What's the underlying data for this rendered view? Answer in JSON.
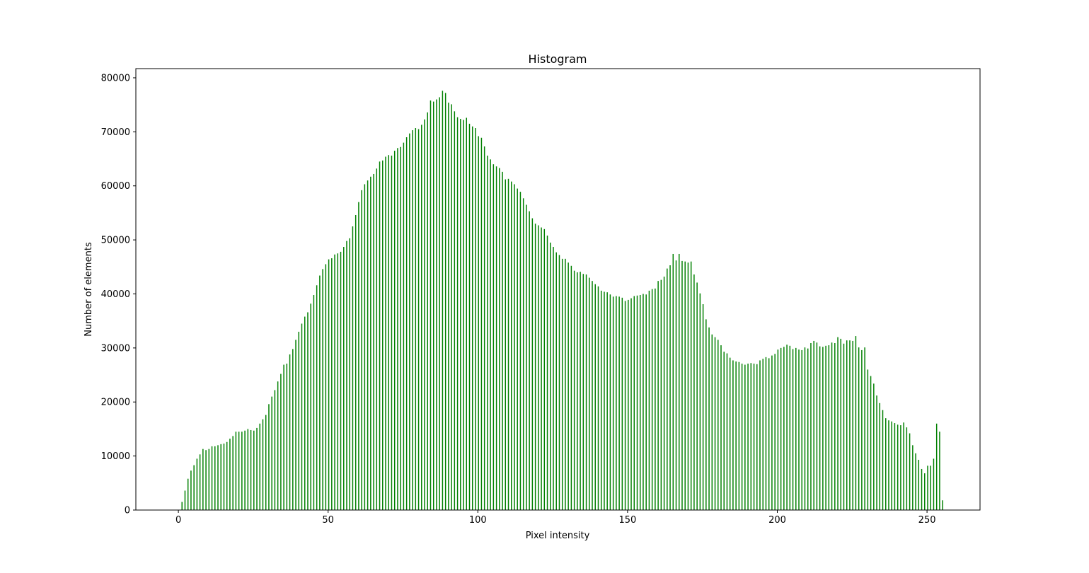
{
  "chart_data": {
    "type": "bar",
    "title": "Histogram",
    "x_label": "Pixel intensity",
    "y_label": "Number of elements",
    "color": "green",
    "x": [
      0,
      1,
      2,
      3,
      4,
      5,
      6,
      7,
      8,
      9,
      10,
      11,
      12,
      13,
      14,
      15,
      16,
      17,
      18,
      19,
      20,
      21,
      22,
      23,
      24,
      25,
      26,
      27,
      28,
      29,
      30,
      31,
      32,
      33,
      34,
      35,
      36,
      37,
      38,
      39,
      40,
      41,
      42,
      43,
      44,
      45,
      46,
      47,
      48,
      49,
      50,
      51,
      52,
      53,
      54,
      55,
      56,
      57,
      58,
      59,
      60,
      61,
      62,
      63,
      64,
      65,
      66,
      67,
      68,
      69,
      70,
      71,
      72,
      73,
      74,
      75,
      76,
      77,
      78,
      79,
      80,
      81,
      82,
      83,
      84,
      85,
      86,
      87,
      88,
      89,
      90,
      91,
      92,
      93,
      94,
      95,
      96,
      97,
      98,
      99,
      100,
      101,
      102,
      103,
      104,
      105,
      106,
      107,
      108,
      109,
      110,
      111,
      112,
      113,
      114,
      115,
      116,
      117,
      118,
      119,
      120,
      121,
      122,
      123,
      124,
      125,
      126,
      127,
      128,
      129,
      130,
      131,
      132,
      133,
      134,
      135,
      136,
      137,
      138,
      139,
      140,
      141,
      142,
      143,
      144,
      145,
      146,
      147,
      148,
      149,
      150,
      151,
      152,
      153,
      154,
      155,
      156,
      157,
      158,
      159,
      160,
      161,
      162,
      163,
      164,
      165,
      166,
      167,
      168,
      169,
      170,
      171,
      172,
      173,
      174,
      175,
      176,
      177,
      178,
      179,
      180,
      181,
      182,
      183,
      184,
      185,
      186,
      187,
      188,
      189,
      190,
      191,
      192,
      193,
      194,
      195,
      196,
      197,
      198,
      199,
      200,
      201,
      202,
      203,
      204,
      205,
      206,
      207,
      208,
      209,
      210,
      211,
      212,
      213,
      214,
      215,
      216,
      217,
      218,
      219,
      220,
      221,
      222,
      223,
      224,
      225,
      226,
      227,
      228,
      229,
      230,
      231,
      232,
      233,
      234,
      235,
      236,
      237,
      238,
      239,
      240,
      241,
      242,
      243,
      244,
      245,
      246,
      247,
      248,
      249,
      250,
      251,
      252,
      253,
      254,
      255
    ],
    "values": [
      0,
      1500,
      3600,
      5800,
      7300,
      8300,
      9500,
      10300,
      11300,
      11100,
      11300,
      11800,
      11800,
      12000,
      12200,
      12300,
      12600,
      13200,
      13700,
      14500,
      14500,
      14500,
      14700,
      15000,
      14800,
      14700,
      15200,
      16000,
      16800,
      17600,
      19600,
      21000,
      22200,
      23800,
      25200,
      26900,
      27100,
      28800,
      29800,
      31500,
      33000,
      34500,
      35800,
      36600,
      38200,
      39800,
      41600,
      43400,
      44600,
      45500,
      46400,
      46600,
      47300,
      47500,
      47800,
      48700,
      49800,
      50300,
      52500,
      54600,
      57000,
      59200,
      60300,
      61000,
      61700,
      62200,
      63200,
      64500,
      64700,
      65400,
      65700,
      65600,
      66500,
      67000,
      67200,
      68000,
      69000,
      69700,
      70300,
      70700,
      70500,
      71300,
      72300,
      73600,
      75800,
      75600,
      76000,
      76400,
      77600,
      77200,
      75400,
      75100,
      73800,
      72700,
      72400,
      72200,
      72600,
      71500,
      71000,
      70700,
      69200,
      68900,
      67300,
      65600,
      64900,
      64000,
      63600,
      63300,
      62600,
      61200,
      61300,
      60800,
      60300,
      59500,
      58900,
      57700,
      56500,
      55300,
      54000,
      53000,
      52700,
      52300,
      52000,
      50800,
      49500,
      48700,
      47700,
      47200,
      46500,
      46500,
      45800,
      45200,
      44300,
      44000,
      44100,
      43700,
      43600,
      43000,
      42400,
      41800,
      41400,
      40600,
      40400,
      40300,
      39900,
      39500,
      39600,
      39500,
      39300,
      38700,
      38900,
      39200,
      39600,
      39700,
      39800,
      40000,
      39900,
      40600,
      40900,
      41000,
      42400,
      42600,
      43200,
      44700,
      45300,
      47400,
      46200,
      47400,
      46100,
      46000,
      45800,
      46000,
      43600,
      42100,
      40100,
      38100,
      35300,
      33800,
      32500,
      32000,
      31500,
      30500,
      29300,
      29000,
      28200,
      27700,
      27500,
      27400,
      27100,
      26900,
      27100,
      27200,
      27100,
      27000,
      27700,
      28000,
      28300,
      28100,
      28600,
      28900,
      29700,
      30000,
      30200,
      30600,
      30400,
      29800,
      30000,
      29700,
      29600,
      30100,
      29900,
      30900,
      31300,
      31000,
      30300,
      30200,
      30400,
      30500,
      31000,
      30900,
      32000,
      31700,
      30800,
      31400,
      31400,
      31300,
      32200,
      30100,
      29600,
      30100,
      26000,
      24800,
      23400,
      21200,
      19800,
      18500,
      17000,
      16600,
      16400,
      16100,
      15800,
      15700,
      16200,
      15300,
      14200,
      12000,
      10500,
      9300,
      7600,
      6800,
      8200,
      8200,
      9500,
      16000,
      14500,
      1800
    ],
    "xlim": [
      -14.2,
      267.7
    ],
    "xticks": [
      0,
      50,
      100,
      150,
      200,
      250
    ],
    "ylim": [
      0,
      81700
    ],
    "yticks": [
      0,
      10000,
      20000,
      30000,
      40000,
      50000,
      60000,
      70000,
      80000
    ]
  }
}
